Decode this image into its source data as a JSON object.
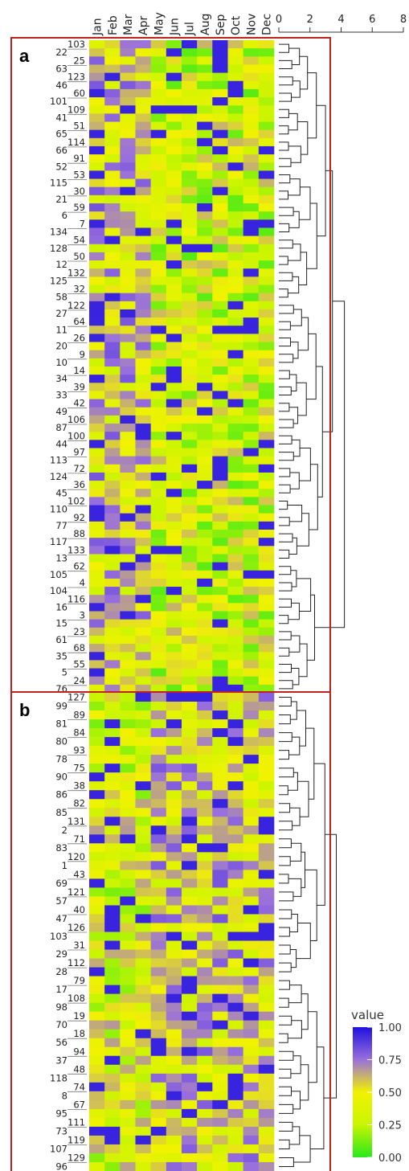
{
  "chart_data": {
    "type": "heatmap",
    "columns": [
      "Jan",
      "Feb",
      "Mar",
      "Apr",
      "May",
      "Jun",
      "Jul",
      "Aug",
      "Sep",
      "Oct",
      "Nov",
      "Dec"
    ],
    "dendrogram_axis": {
      "ticks": [
        0,
        2,
        4,
        6,
        8
      ]
    },
    "legend": {
      "title": "value",
      "ticks": [
        "1.00",
        "0.75",
        "0.50",
        "0.25",
        "0.00"
      ],
      "colors": [
        "#1f10e0",
        "#9a70dc",
        "#f2f200",
        "#c8f500",
        "#28e81c"
      ]
    },
    "panels": [
      {
        "label": "a",
        "rows": [
          "103",
          "22",
          "25",
          "63",
          "123",
          "46",
          "60",
          "101",
          "109",
          "41",
          "51",
          "65",
          "114",
          "66",
          "91",
          "52",
          "53",
          "115",
          "30",
          "21",
          "59",
          "6",
          "7",
          "134",
          "54",
          "128",
          "50",
          "12",
          "132",
          "125",
          "32",
          "58",
          "122",
          "27",
          "64",
          "11",
          "26",
          "20",
          "9",
          "10",
          "14",
          "34",
          "39",
          "33",
          "42",
          "49",
          "106",
          "87",
          "100",
          "44",
          "97",
          "113",
          "72",
          "124",
          "36",
          "45",
          "102",
          "110",
          "92",
          "77",
          "88",
          "117",
          "133",
          "13",
          "62",
          "105",
          "4",
          "104",
          "116",
          "16",
          "3",
          "15",
          "23",
          "61",
          "68",
          "35",
          "55",
          "5",
          "24",
          "76"
        ]
      },
      {
        "label": "b",
        "rows": [
          "127",
          "99",
          "89",
          "81",
          "84",
          "80",
          "93",
          "78",
          "75",
          "90",
          "38",
          "86",
          "82",
          "85",
          "131",
          "2",
          "71",
          "83",
          "120",
          "1",
          "43",
          "69",
          "121",
          "57",
          "40",
          "47",
          "126",
          "103",
          "31",
          "29",
          "112",
          "28",
          "79",
          "17",
          "108",
          "98",
          "19",
          "70",
          "18",
          "56",
          "94",
          "37",
          "48",
          "118",
          "74",
          "8",
          "67",
          "95",
          "111",
          "73",
          "119",
          "107",
          "129",
          "96"
        ]
      }
    ]
  }
}
